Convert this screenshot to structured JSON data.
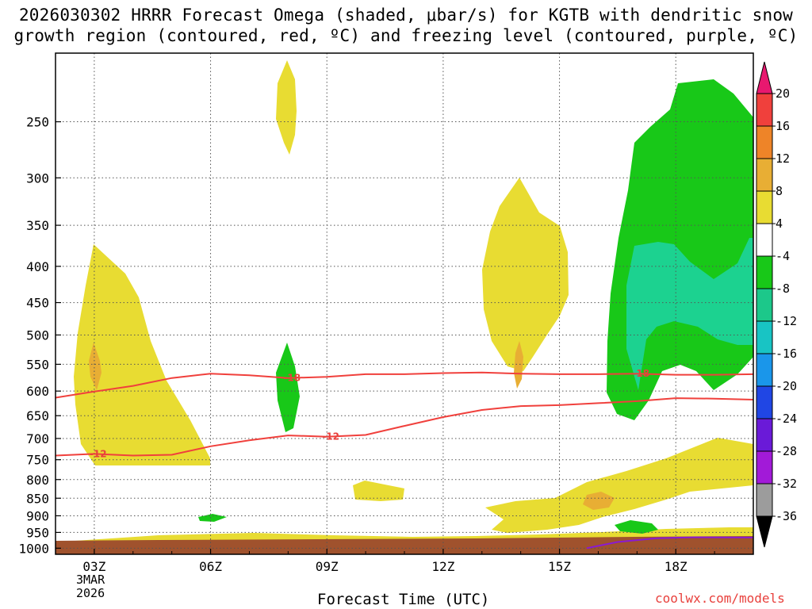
{
  "title_line1": "2026030302 HRRR Forecast Omega (shaded, μbar/s) for KGTB with dendritic snow",
  "title_line2": "growth region (contoured, red, ºC) and freezing level (contoured, purple, ºC)",
  "xlabel": "Forecast Time (UTC)",
  "credit": "coolwx.com/models",
  "date_line1": "3MAR",
  "date_line2": "2026",
  "chart_data": {
    "type": "heatmap",
    "xlabel": "Forecast Time (UTC)",
    "x_ticks": [
      "03Z",
      "06Z",
      "09Z",
      "12Z",
      "15Z",
      "18Z"
    ],
    "x_tick_hours": [
      3,
      6,
      9,
      12,
      15,
      18
    ],
    "xlim": [
      2,
      20
    ],
    "y_ticks": [
      250,
      300,
      350,
      400,
      450,
      500,
      550,
      600,
      650,
      700,
      750,
      800,
      850,
      900,
      950,
      1000
    ],
    "ylim": [
      1020,
      200
    ],
    "grid": true,
    "colorbar": {
      "labels": [
        "20",
        "16",
        "12",
        "8",
        "4",
        "-4",
        "-8",
        "-12",
        "-16",
        "-20",
        "-24",
        "-28",
        "-32",
        "-36"
      ],
      "colors": [
        "#e8186f",
        "#f0403c",
        "#ee8428",
        "#e8ae34",
        "#e8dc32",
        "#ffffff",
        "#18c818",
        "#1cc88a",
        "#18c4c4",
        "#1a96ea",
        "#2046e4",
        "#6a1ad8",
        "#a21ad8",
        "#9c9c9c",
        "#000000"
      ]
    },
    "contours": [
      {
        "label": "-18",
        "color": "#f0403c",
        "points": [
          [
            2,
            613
          ],
          [
            3,
            601
          ],
          [
            4,
            590
          ],
          [
            5,
            575
          ],
          [
            6,
            567
          ],
          [
            7,
            570
          ],
          [
            8,
            575
          ],
          [
            9,
            573
          ],
          [
            10,
            568
          ],
          [
            11,
            568
          ],
          [
            12,
            566
          ],
          [
            13,
            565
          ],
          [
            14,
            567
          ],
          [
            15,
            568
          ],
          [
            16,
            568
          ],
          [
            17,
            567
          ],
          [
            18,
            569
          ],
          [
            19,
            569
          ],
          [
            20,
            568
          ]
        ]
      },
      {
        "label": "-12",
        "color": "#f0403c",
        "points": [
          [
            2,
            740
          ],
          [
            3,
            736
          ],
          [
            4,
            740
          ],
          [
            5,
            738
          ],
          [
            6,
            718
          ],
          [
            7,
            704
          ],
          [
            8,
            693
          ],
          [
            9,
            696
          ],
          [
            10,
            692
          ],
          [
            11,
            672
          ],
          [
            12,
            653
          ],
          [
            13,
            638
          ],
          [
            14,
            630
          ],
          [
            15,
            628
          ],
          [
            16,
            624
          ],
          [
            17,
            620
          ],
          [
            18,
            614
          ],
          [
            19,
            615
          ],
          [
            20,
            617
          ]
        ]
      },
      {
        "label": "",
        "color": "#8a1ad2",
        "points": [
          [
            15.7,
            1000
          ],
          [
            16.5,
            980
          ],
          [
            17.5,
            968
          ],
          [
            18.5,
            965
          ],
          [
            20,
            966
          ]
        ]
      }
    ],
    "shaded_regions": [
      {
        "value": 4,
        "description": "positive omega",
        "hours": [
          2.5,
          5
        ]
      },
      {
        "value": 8,
        "description": "positive omega max",
        "hours": [
          2.9,
          3.2
        ]
      },
      {
        "value": -4,
        "description": "negative omega",
        "hours": [
          16.3,
          20
        ]
      },
      {
        "value": -8,
        "description": "negative omega core",
        "hours": [
          16.7,
          20
        ]
      }
    ],
    "terrain_color": "#a0522d"
  }
}
